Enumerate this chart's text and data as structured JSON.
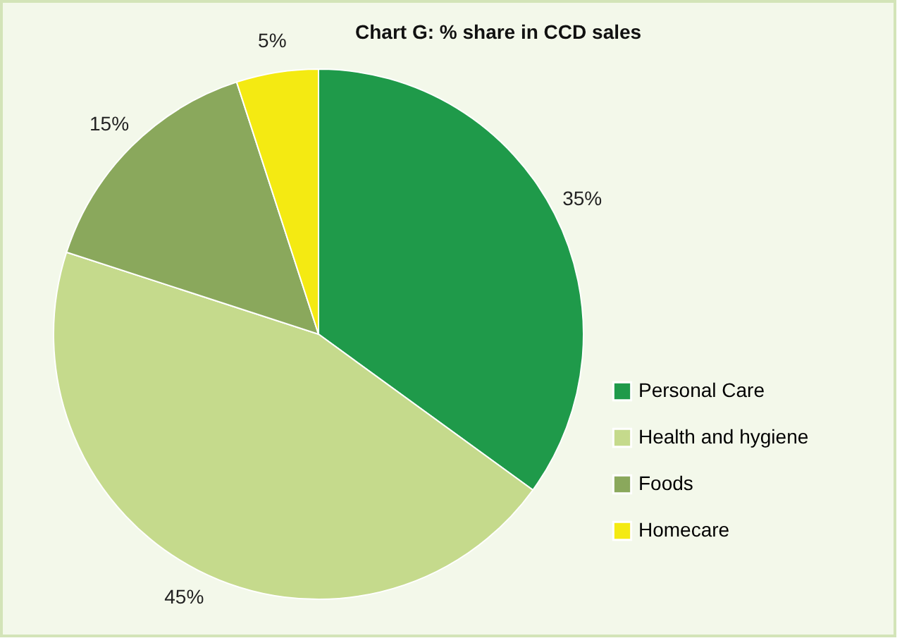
{
  "chart_data": {
    "type": "pie",
    "title": "Chart G: % share in CCD sales",
    "categories": [
      "Personal Care",
      "Health and hygiene",
      "Foods",
      "Homecare"
    ],
    "values": [
      35,
      45,
      15,
      5
    ],
    "colors": [
      "#1f9a4a",
      "#c5da8c",
      "#8aa85c",
      "#f4ea12"
    ],
    "value_labels": [
      "35%",
      "45%",
      "15%",
      "5%"
    ],
    "legend": "right"
  }
}
